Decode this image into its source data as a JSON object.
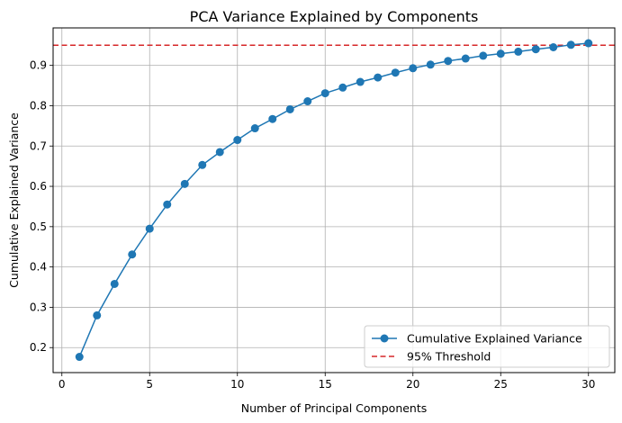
{
  "chart_data": {
    "type": "line",
    "title": "PCA Variance Explained by Components",
    "xlabel": "Number of Principal Components",
    "ylabel": "Cumulative Explained Variance",
    "xlim": [
      -0.5,
      31.5
    ],
    "ylim": [
      0.138,
      0.993
    ],
    "xticks": [
      0,
      5,
      10,
      15,
      20,
      25,
      30
    ],
    "yticks": [
      0.2,
      0.3,
      0.4,
      0.5,
      0.6,
      0.7,
      0.8,
      0.9
    ],
    "grid": true,
    "legend_position": "lower-right",
    "series": [
      {
        "name": "Cumulative Explained Variance",
        "color": "#1f77b4",
        "marker": "circle",
        "x": [
          1,
          2,
          3,
          4,
          5,
          6,
          7,
          8,
          9,
          10,
          11,
          12,
          13,
          14,
          15,
          16,
          17,
          18,
          19,
          20,
          21,
          22,
          23,
          24,
          25,
          26,
          27,
          28,
          29,
          30
        ],
        "values": [
          0.177,
          0.28,
          0.358,
          0.431,
          0.495,
          0.555,
          0.606,
          0.653,
          0.685,
          0.715,
          0.744,
          0.767,
          0.791,
          0.811,
          0.831,
          0.845,
          0.859,
          0.87,
          0.882,
          0.893,
          0.902,
          0.911,
          0.917,
          0.924,
          0.929,
          0.934,
          0.94,
          0.945,
          0.951,
          0.955
        ]
      }
    ],
    "threshold": {
      "name": "95% Threshold",
      "value": 0.95,
      "color": "#d62728",
      "style": "dashed"
    }
  }
}
